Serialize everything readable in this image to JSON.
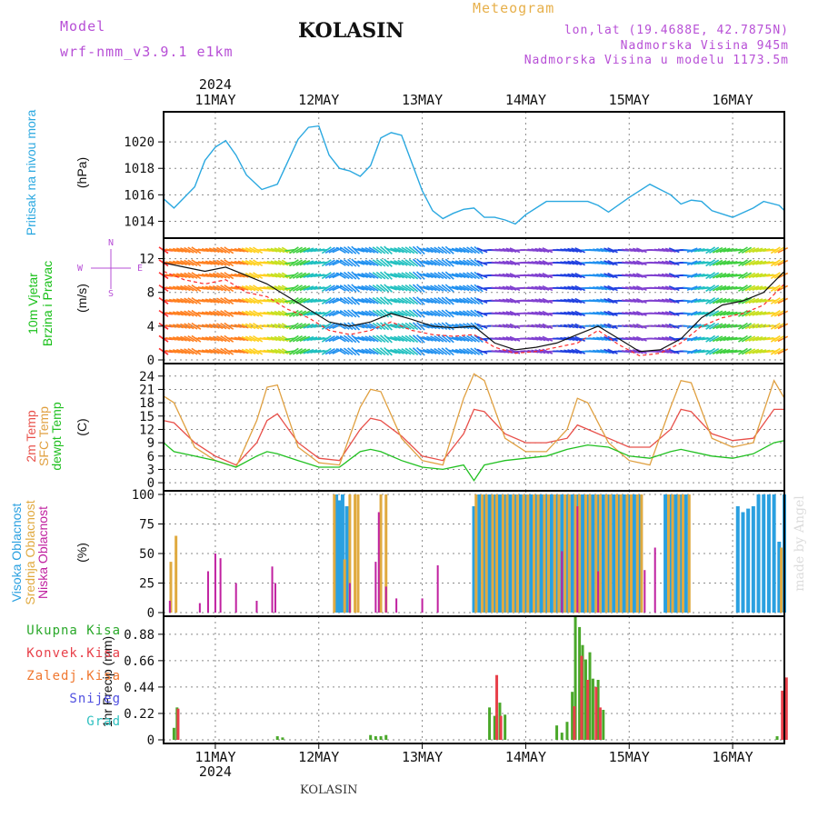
{
  "header": {
    "model_label": "Model",
    "model_run": "wrf-nmm_v3.9.1  e1km",
    "location": "KOLASIN",
    "product": "Meteogram",
    "coords": "lon,lat (19.4688E, 42.7875N)",
    "elevation": "Nadmorska Visina 945m",
    "model_elevation": "Nadmorska Visina u modelu 1173.5m"
  },
  "footer": {
    "location": "KOLASIN"
  },
  "credit": "made by Angel",
  "time_axis": {
    "year": "2024",
    "days": [
      "11MAY",
      "12MAY",
      "13MAY",
      "14MAY",
      "15MAY",
      "16MAY"
    ],
    "start_day": 10.5,
    "end_day": 16.5,
    "day_positions": [
      11,
      12,
      13,
      14,
      15,
      16
    ]
  },
  "colors": {
    "pressure": "#2aa8e0",
    "wind": "#19c019",
    "temp2m": "#e8504a",
    "sfc": "#e0a040",
    "dewpt": "#20c020",
    "cloud_high": "#2aa0e0",
    "cloud_mid": "#e0aa40",
    "cloud_low": "#c020a0",
    "total_precip": "#4aa82a",
    "conv_precip": "#e8404a",
    "freezing": "#f07830",
    "snow": "#5050e0",
    "hail": "#30c0c0",
    "wind_label": "#b74fd6"
  },
  "chart_data": [
    {
      "type": "line",
      "id": "pressure",
      "label": "Pritisak na nivou mora",
      "unit": "(hPa)",
      "ylim": [
        1013,
        1022
      ],
      "yticks": [
        "1014",
        "1016",
        "1018",
        "1020"
      ],
      "grid": true,
      "series": [
        {
          "x": [
            10.5,
            10.6,
            10.7,
            10.8,
            10.9,
            11.0,
            11.1,
            11.2,
            11.3,
            11.45,
            11.6,
            11.7,
            11.8,
            11.9,
            12.0,
            12.1,
            12.2,
            12.3,
            12.4,
            12.5,
            12.6,
            12.7,
            12.8,
            12.9,
            13.0,
            13.1,
            13.2,
            13.3,
            13.4,
            13.5,
            13.6,
            13.7,
            13.8,
            13.9,
            14.0,
            14.2,
            14.4,
            14.6,
            14.7,
            14.8,
            15.0,
            15.2,
            15.4,
            15.5,
            15.6,
            15.7,
            15.8,
            16.0,
            16.2,
            16.3,
            16.45,
            16.5
          ],
          "values": [
            1015.7,
            1015.0,
            1015.8,
            1016.6,
            1018.6,
            1019.6,
            1020.1,
            1019.0,
            1017.5,
            1016.4,
            1016.8,
            1018.5,
            1020.2,
            1021.1,
            1021.2,
            1019.0,
            1018.0,
            1017.8,
            1017.4,
            1018.2,
            1020.3,
            1020.7,
            1020.5,
            1018.4,
            1016.3,
            1014.8,
            1014.2,
            1014.6,
            1014.9,
            1015.0,
            1014.3,
            1014.3,
            1014.1,
            1013.8,
            1014.5,
            1015.5,
            1015.5,
            1015.5,
            1015.2,
            1014.7,
            1015.8,
            1016.8,
            1016.0,
            1015.3,
            1015.6,
            1015.5,
            1014.8,
            1014.3,
            1015.0,
            1015.5,
            1015.2,
            1014.8
          ]
        }
      ]
    },
    {
      "type": "line",
      "id": "wind",
      "label": "10m Vjetar\nBrzina i Pravac",
      "unit": "(m/s)",
      "ylim": [
        0,
        14
      ],
      "yticks": [
        "0",
        "4",
        "8",
        "12"
      ],
      "compass": [
        "N",
        "W",
        "E",
        "S"
      ],
      "grid": true,
      "series": [
        {
          "name": "speed",
          "x": [
            10.5,
            10.7,
            10.9,
            11.1,
            11.3,
            11.5,
            11.7,
            11.9,
            12.1,
            12.3,
            12.5,
            12.7,
            12.9,
            13.1,
            13.3,
            13.5,
            13.7,
            13.9,
            14.1,
            14.3,
            14.5,
            14.7,
            14.9,
            15.1,
            15.3,
            15.5,
            15.7,
            15.9,
            16.1,
            16.3,
            16.5
          ],
          "values": [
            11.5,
            11.0,
            10.5,
            11.0,
            10.0,
            9.0,
            7.5,
            6.0,
            4.5,
            4.0,
            4.5,
            5.5,
            4.8,
            4.0,
            3.8,
            4.0,
            2.0,
            1.2,
            1.5,
            2.0,
            3.0,
            4.0,
            2.5,
            1.0,
            1.2,
            2.5,
            5.0,
            6.5,
            7.0,
            8.0,
            10.5
          ]
        },
        {
          "name": "gust",
          "x": [
            10.5,
            10.7,
            10.9,
            11.1,
            11.3,
            11.5,
            11.7,
            11.9,
            12.1,
            12.3,
            12.5,
            12.7,
            12.9,
            13.1,
            13.3,
            13.5,
            13.7,
            13.9,
            14.1,
            14.3,
            14.5,
            14.7,
            14.9,
            15.1,
            15.3,
            15.5,
            15.7,
            15.9,
            16.1,
            16.3,
            16.5
          ],
          "values": [
            10.5,
            9.5,
            9.0,
            9.5,
            8.0,
            7.5,
            6.0,
            5.0,
            3.5,
            3.0,
            3.5,
            4.5,
            3.5,
            3.0,
            2.8,
            3.0,
            1.5,
            0.8,
            1.0,
            1.5,
            2.0,
            3.5,
            1.8,
            0.5,
            0.8,
            2.0,
            4.0,
            5.0,
            5.5,
            6.5,
            9.0
          ]
        }
      ]
    },
    {
      "type": "line",
      "id": "temperature",
      "label": "2m Temp\nSFC Temp\ndewpt Temp",
      "unit": "(C)",
      "ylim": [
        -1,
        26
      ],
      "yticks": [
        "0",
        "3",
        "6",
        "9",
        "12",
        "15",
        "18",
        "21",
        "24"
      ],
      "grid": true,
      "series": [
        {
          "name": "2m Temp",
          "x": [
            10.5,
            10.6,
            10.8,
            11.0,
            11.2,
            11.4,
            11.5,
            11.6,
            11.8,
            12.0,
            12.2,
            12.4,
            12.5,
            12.6,
            12.8,
            13.0,
            13.2,
            13.4,
            13.5,
            13.6,
            13.8,
            14.0,
            14.2,
            14.4,
            14.5,
            14.6,
            14.8,
            15.0,
            15.2,
            15.4,
            15.5,
            15.6,
            15.8,
            16.0,
            16.2,
            16.4,
            16.5
          ],
          "values": [
            14,
            13.5,
            9,
            6,
            4,
            9,
            14,
            15.5,
            9,
            5.5,
            5,
            12,
            14.5,
            14,
            10.5,
            6,
            5,
            11,
            16.5,
            16,
            11,
            9,
            9,
            10,
            13,
            12,
            10,
            8,
            8,
            12,
            16.5,
            16,
            11,
            9.5,
            10,
            16.5,
            16.5
          ]
        },
        {
          "name": "SFC Temp",
          "x": [
            10.5,
            10.6,
            10.8,
            11.0,
            11.2,
            11.4,
            11.5,
            11.6,
            11.8,
            12.0,
            12.2,
            12.4,
            12.5,
            12.6,
            12.8,
            13.0,
            13.2,
            13.4,
            13.5,
            13.6,
            13.8,
            14.0,
            14.2,
            14.4,
            14.5,
            14.6,
            14.8,
            15.0,
            15.2,
            15.4,
            15.5,
            15.6,
            15.8,
            16.0,
            16.2,
            16.4,
            16.5
          ],
          "values": [
            19.5,
            18,
            8,
            5,
            3.5,
            14,
            21.5,
            22,
            8,
            4.5,
            4,
            17,
            21,
            20.5,
            10,
            5,
            4,
            19,
            24.5,
            23,
            10,
            7,
            7,
            12,
            19,
            18,
            9,
            5,
            4,
            17,
            23,
            22.5,
            10,
            8,
            9,
            23,
            19
          ]
        },
        {
          "name": "dewpt Temp",
          "x": [
            10.5,
            10.6,
            10.8,
            11.0,
            11.2,
            11.4,
            11.5,
            11.6,
            11.8,
            12.0,
            12.2,
            12.4,
            12.5,
            12.6,
            12.8,
            13.0,
            13.2,
            13.4,
            13.5,
            13.6,
            13.8,
            14.0,
            14.2,
            14.4,
            14.5,
            14.6,
            14.8,
            15.0,
            15.2,
            15.4,
            15.5,
            15.6,
            15.8,
            16.0,
            16.2,
            16.4,
            16.5
          ],
          "values": [
            9,
            7,
            6,
            5,
            3.5,
            6,
            7,
            6.5,
            5,
            3.5,
            3.5,
            7,
            7.5,
            7,
            5,
            3.5,
            3,
            4,
            0.5,
            4,
            5,
            5.5,
            6,
            7.5,
            8,
            8.5,
            8,
            6,
            5.5,
            7,
            7.5,
            7,
            6,
            5.5,
            6.5,
            9,
            9.5
          ]
        }
      ]
    },
    {
      "type": "bar",
      "id": "clouds",
      "label": "Visoka Oblacnost\nSrednja Oblacnost\nNiska Oblacnost",
      "unit": "(%)",
      "ylim": [
        0,
        100
      ],
      "yticks": [
        "0",
        "25",
        "50",
        "75",
        "100"
      ],
      "grid": true,
      "series": [
        {
          "name": "Visoka Oblacnost",
          "x": [
            12.17,
            12.2,
            12.23,
            12.27,
            13.5,
            13.55,
            13.6,
            13.65,
            13.7,
            13.75,
            13.8,
            13.85,
            13.9,
            13.95,
            14.0,
            14.05,
            14.1,
            14.15,
            14.2,
            14.25,
            14.3,
            14.35,
            14.4,
            14.45,
            14.5,
            14.55,
            14.6,
            14.65,
            14.7,
            14.75,
            14.8,
            14.85,
            14.9,
            14.95,
            15.0,
            15.05,
            15.1,
            15.35,
            15.4,
            15.45,
            15.5,
            15.55,
            16.05,
            16.1,
            16.15,
            16.2,
            16.25,
            16.3,
            16.35,
            16.4,
            16.45,
            16.5
          ],
          "values": [
            100,
            95,
            100,
            90,
            90,
            100,
            100,
            100,
            100,
            100,
            100,
            100,
            100,
            100,
            100,
            100,
            100,
            100,
            100,
            100,
            100,
            100,
            100,
            100,
            100,
            100,
            100,
            100,
            100,
            100,
            100,
            100,
            100,
            100,
            100,
            100,
            100,
            100,
            100,
            100,
            100,
            100,
            90,
            85,
            88,
            90,
            100,
            100,
            100,
            100,
            60,
            100
          ]
        },
        {
          "name": "Srednja Oblacnost",
          "x": [
            10.57,
            10.62,
            12.15,
            12.25,
            12.3,
            12.35,
            12.38,
            12.6,
            12.65,
            13.52,
            13.58,
            13.62,
            13.68,
            13.72,
            13.78,
            13.82,
            13.88,
            13.92,
            13.98,
            14.02,
            14.08,
            14.12,
            14.18,
            14.22,
            14.28,
            14.32,
            14.38,
            14.42,
            14.48,
            14.52,
            14.58,
            14.62,
            14.68,
            14.72,
            14.78,
            14.82,
            14.88,
            14.92,
            14.98,
            15.02,
            15.08,
            15.12,
            15.38,
            15.42,
            15.48,
            15.52,
            15.58,
            16.47
          ],
          "values": [
            43,
            65,
            100,
            45,
            100,
            100,
            100,
            100,
            100,
            100,
            100,
            100,
            100,
            100,
            100,
            100,
            100,
            100,
            100,
            100,
            100,
            100,
            100,
            100,
            100,
            100,
            100,
            100,
            100,
            100,
            100,
            100,
            100,
            100,
            100,
            100,
            100,
            100,
            100,
            100,
            100,
            100,
            100,
            100,
            100,
            100,
            100,
            55
          ]
        },
        {
          "name": "Niska Oblacnost",
          "x": [
            10.56,
            10.85,
            10.93,
            11.0,
            11.05,
            11.2,
            11.4,
            11.55,
            11.58,
            12.3,
            12.55,
            12.58,
            12.65,
            12.75,
            13.0,
            13.15,
            14.35,
            14.5,
            14.7,
            15.15,
            15.25
          ],
          "values": [
            10,
            8,
            35,
            50,
            46,
            25,
            10,
            39,
            25,
            25,
            43,
            85,
            22,
            12,
            12,
            40,
            52,
            90,
            35,
            36,
            55
          ]
        }
      ]
    },
    {
      "type": "bar",
      "id": "precip",
      "label": "1hr Precip (mm)",
      "ylim": [
        0,
        1.0
      ],
      "yticks": [
        "0",
        "0.22",
        "0.44",
        "0.66",
        "0.88"
      ],
      "grid": true,
      "legend": [
        "Ukupna Kisa",
        "Konvek.Kisa",
        "Zaledj.Kisa",
        "Snijeg",
        "Grad"
      ],
      "series": [
        {
          "name": "Ukupna Kisa",
          "x": [
            10.6,
            10.63,
            11.6,
            11.65,
            12.5,
            12.55,
            12.6,
            12.65,
            13.65,
            13.7,
            13.75,
            13.8,
            14.3,
            14.35,
            14.4,
            14.45,
            14.48,
            14.52,
            14.55,
            14.58,
            14.62,
            14.65,
            14.7,
            14.75,
            16.43,
            16.5
          ],
          "values": [
            0.1,
            0.27,
            0.03,
            0.02,
            0.04,
            0.03,
            0.03,
            0.04,
            0.27,
            0.2,
            0.31,
            0.21,
            0.12,
            0.06,
            0.15,
            0.4,
            1.03,
            0.94,
            0.79,
            0.67,
            0.73,
            0.51,
            0.5,
            0.25,
            0.03,
            0.41
          ]
        },
        {
          "name": "Konvek.Kisa",
          "x": [
            10.64,
            13.72,
            13.76,
            14.47,
            14.54,
            14.6,
            14.68,
            14.72,
            16.48,
            16.52
          ],
          "values": [
            0.26,
            0.54,
            0.2,
            0.28,
            0.7,
            0.5,
            0.44,
            0.27,
            0.41,
            0.52
          ]
        }
      ]
    }
  ]
}
